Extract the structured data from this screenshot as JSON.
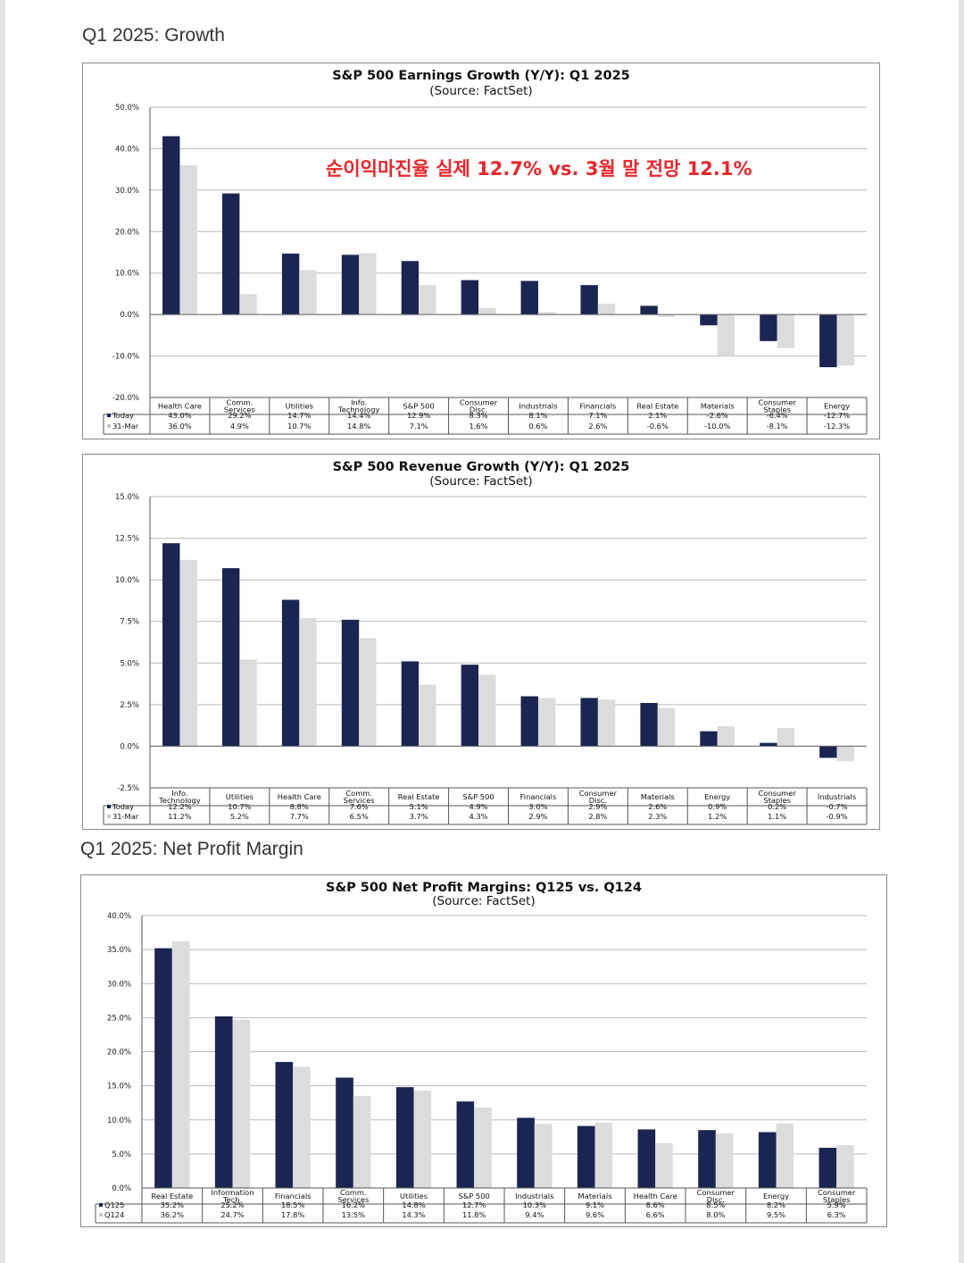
{
  "page": {
    "section1_title": "Q1 2025: Growth",
    "section2_title": "Q1 2025: Net Profit Margin"
  },
  "colors": {
    "series_primary": "#1b2551",
    "series_secondary": "#dcdcdc",
    "annotation": "#e8262b"
  },
  "chart_data": [
    {
      "type": "bar",
      "title": "S&P 500 Earnings Growth (Y/Y): Q1 2025",
      "subtitle": "(Source: FactSet)",
      "annotation": "순이익마진율 실제 12.7% vs. 3월 말 전망 12.1%",
      "categories": [
        [
          "Health Care"
        ],
        [
          "Comm.",
          "Services"
        ],
        [
          "Utilities"
        ],
        [
          "Info.",
          "Technology"
        ],
        [
          "S&P 500"
        ],
        [
          "Consumer",
          "Disc."
        ],
        [
          "Industrials"
        ],
        [
          "Financials"
        ],
        [
          "Real Estate"
        ],
        [
          "Materials"
        ],
        [
          "Consumer",
          "Staples"
        ],
        [
          "Energy"
        ]
      ],
      "series": [
        {
          "name": "Today",
          "values": [
            43.0,
            29.2,
            14.7,
            14.4,
            12.9,
            8.3,
            8.1,
            7.1,
            2.1,
            -2.6,
            -6.4,
            -12.7
          ],
          "labels": [
            "43.0%",
            "29.2%",
            "14.7%",
            "14.4%",
            "12.9%",
            "8.3%",
            "8.1%",
            "7.1%",
            "2.1%",
            "-2.6%",
            "-6.4%",
            "-12.7%"
          ]
        },
        {
          "name": "31-Mar",
          "values": [
            36.0,
            4.9,
            10.7,
            14.8,
            7.1,
            1.6,
            0.6,
            2.6,
            -0.6,
            -10.0,
            -8.1,
            -12.3
          ],
          "labels": [
            "36.0%",
            "4.9%",
            "10.7%",
            "14.8%",
            "7.1%",
            "1.6%",
            "0.6%",
            "2.6%",
            "-0.6%",
            "-10.0%",
            "-8.1%",
            "-12.3%"
          ]
        }
      ],
      "ylim": [
        -20,
        50
      ],
      "yticks": [
        50,
        40,
        30,
        20,
        10,
        0,
        -10,
        -20
      ],
      "ytick_labels": [
        "50.0%",
        "40.0%",
        "30.0%",
        "20.0%",
        "10.0%",
        "0.0%",
        "-10.0%",
        "-20.0%"
      ],
      "grid": true,
      "legend": "data table below plot"
    },
    {
      "type": "bar",
      "title": "S&P 500 Revenue Growth (Y/Y): Q1 2025",
      "subtitle": "(Source: FactSet)",
      "categories": [
        [
          "Info.",
          "Technology"
        ],
        [
          "Utilities"
        ],
        [
          "Health Care"
        ],
        [
          "Comm.",
          "Services"
        ],
        [
          "Real Estate"
        ],
        [
          "S&P 500"
        ],
        [
          "Financials"
        ],
        [
          "Consumer",
          "Disc."
        ],
        [
          "Materials"
        ],
        [
          "Energy"
        ],
        [
          "Consumer",
          "Staples"
        ],
        [
          "Industrials"
        ]
      ],
      "series": [
        {
          "name": "Today",
          "values": [
            12.2,
            10.7,
            8.8,
            7.6,
            5.1,
            4.9,
            3.0,
            2.9,
            2.6,
            0.9,
            0.2,
            -0.7
          ],
          "labels": [
            "12.2%",
            "10.7%",
            "8.8%",
            "7.6%",
            "5.1%",
            "4.9%",
            "3.0%",
            "2.9%",
            "2.6%",
            "0.9%",
            "0.2%",
            "-0.7%"
          ]
        },
        {
          "name": "31-Mar",
          "values": [
            11.2,
            5.2,
            7.7,
            6.5,
            3.7,
            4.3,
            2.9,
            2.8,
            2.3,
            1.2,
            1.1,
            -0.9
          ],
          "labels": [
            "11.2%",
            "5.2%",
            "7.7%",
            "6.5%",
            "3.7%",
            "4.3%",
            "2.9%",
            "2.8%",
            "2.3%",
            "1.2%",
            "1.1%",
            "-0.9%"
          ]
        }
      ],
      "ylim": [
        -2.5,
        15
      ],
      "yticks": [
        15,
        12.5,
        10,
        7.5,
        5,
        2.5,
        0,
        -2.5
      ],
      "ytick_labels": [
        "15.0%",
        "12.5%",
        "10.0%",
        "7.5%",
        "5.0%",
        "2.5%",
        "0.0%",
        "-2.5%"
      ],
      "grid": true,
      "legend": "data table below plot"
    },
    {
      "type": "bar",
      "title": "S&P 500 Net Profit Margins: Q125 vs. Q124",
      "subtitle": "(Source: FactSet)",
      "categories": [
        [
          "Real Estate"
        ],
        [
          "Information",
          "Tech."
        ],
        [
          "Financials"
        ],
        [
          "Comm.",
          "Services"
        ],
        [
          "Utilities"
        ],
        [
          "S&P 500"
        ],
        [
          "Industrials"
        ],
        [
          "Materials"
        ],
        [
          "Health Care"
        ],
        [
          "Consumer",
          "Disc."
        ],
        [
          "Energy"
        ],
        [
          "Consumer",
          "Staples"
        ]
      ],
      "series": [
        {
          "name": "Q125",
          "values": [
            35.2,
            25.2,
            18.5,
            16.2,
            14.8,
            12.7,
            10.3,
            9.1,
            8.6,
            8.5,
            8.2,
            5.9
          ],
          "labels": [
            "35.2%",
            "25.2%",
            "18.5%",
            "16.2%",
            "14.8%",
            "12.7%",
            "10.3%",
            "9.1%",
            "8.6%",
            "8.5%",
            "8.2%",
            "5.9%"
          ]
        },
        {
          "name": "Q124",
          "values": [
            36.2,
            24.7,
            17.8,
            13.5,
            14.3,
            11.8,
            9.4,
            9.6,
            6.6,
            8.0,
            9.5,
            6.3
          ],
          "labels": [
            "36.2%",
            "24.7%",
            "17.8%",
            "13.5%",
            "14.3%",
            "11.8%",
            "9.4%",
            "9.6%",
            "6.6%",
            "8.0%",
            "9.5%",
            "6.3%"
          ]
        }
      ],
      "ylim": [
        0,
        40
      ],
      "yticks": [
        40,
        35,
        30,
        25,
        20,
        15,
        10,
        5,
        0
      ],
      "ytick_labels": [
        "40.0%",
        "35.0%",
        "30.0%",
        "25.0%",
        "20.0%",
        "15.0%",
        "10.0%",
        "5.0%",
        "0.0%"
      ],
      "grid": true,
      "legend": "data table below plot"
    }
  ]
}
